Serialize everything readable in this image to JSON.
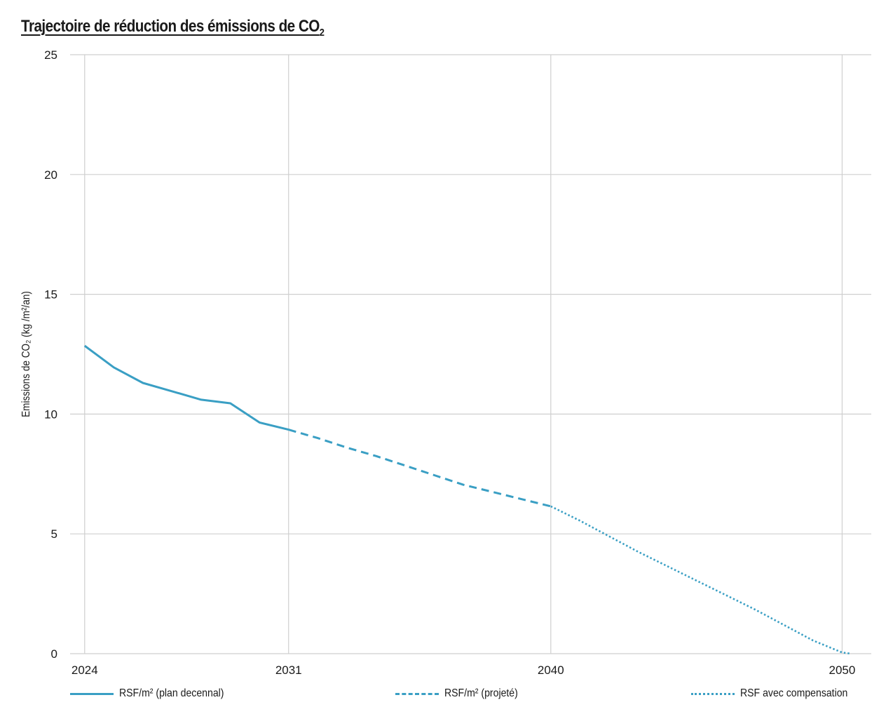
{
  "chart_data": {
    "type": "line",
    "title": "Trajectoire de réduction des émissions de CO",
    "title_subscript": "2",
    "xlabel": "",
    "ylabel": "Emissions de CO₂ (kg /m²/an)",
    "xlim": [
      2023.5,
      2051
    ],
    "ylim": [
      0,
      25
    ],
    "x_ticks": [
      2024,
      2031,
      2040,
      2050
    ],
    "y_ticks": [
      0,
      5,
      10,
      15,
      20,
      25
    ],
    "grid": true,
    "legend_position": "bottom",
    "series": [
      {
        "name": "RSF/m² (plan decennal)",
        "style": "solid",
        "color": "#3a9fc4",
        "x": [
          2024,
          2025,
          2026,
          2027,
          2028,
          2029,
          2030,
          2031
        ],
        "y": [
          12.85,
          11.95,
          11.3,
          10.95,
          10.6,
          10.45,
          9.65,
          9.35
        ]
      },
      {
        "name": "RSF/m² (projeté)",
        "style": "dashed",
        "color": "#3a9fc4",
        "x": [
          2031,
          2032,
          2033,
          2034,
          2035,
          2036,
          2037,
          2038,
          2039,
          2040
        ],
        "y": [
          9.35,
          9.0,
          8.6,
          8.25,
          7.85,
          7.45,
          7.05,
          6.75,
          6.45,
          6.15
        ]
      },
      {
        "name": "RSF avec compensation",
        "style": "dotted",
        "color": "#3a9fc4",
        "x": [
          2040,
          2041,
          2042,
          2043,
          2044,
          2045,
          2046,
          2047,
          2048,
          2049,
          2050,
          2050.3
        ],
        "y": [
          6.15,
          5.55,
          4.9,
          4.25,
          3.65,
          3.05,
          2.45,
          1.85,
          1.2,
          0.55,
          0.05,
          0
        ]
      }
    ]
  }
}
